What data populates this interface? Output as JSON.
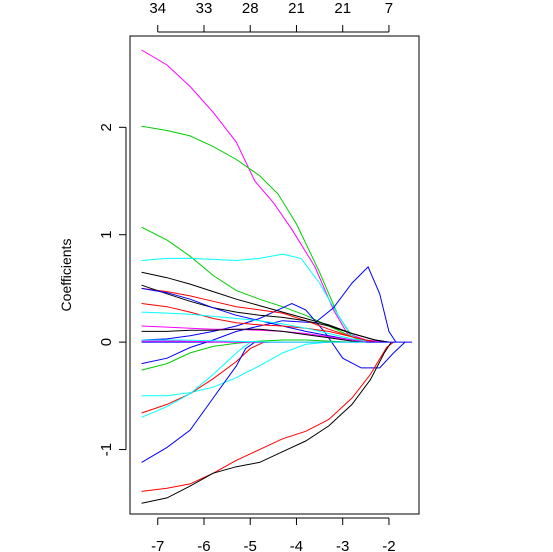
{
  "chart_data": {
    "type": "line",
    "title": "",
    "xlabel": "",
    "ylabel": "Coefficients",
    "xlim": [
      -7.6,
      -1.35
    ],
    "ylim": [
      -1.6,
      2.85
    ],
    "x_ticks": [
      -7,
      -6,
      -5,
      -4,
      -3,
      -2
    ],
    "x_tick_labels": [
      "-7",
      "-6",
      "-5",
      "-4",
      "-3",
      "-2"
    ],
    "y_ticks": [
      -1,
      0,
      1,
      2
    ],
    "y_tick_labels": [
      "-1",
      "0",
      "1",
      "2"
    ],
    "top_ticks": [
      -7,
      -6,
      -5,
      -4,
      -3,
      -2
    ],
    "top_tick_labels": [
      "34",
      "33",
      "28",
      "21",
      "21",
      "7"
    ],
    "grid": false,
    "legend": "none",
    "series": [
      {
        "color": "#FF00FF",
        "points": [
          [
            -7.35,
            2.72
          ],
          [
            -6.8,
            2.58
          ],
          [
            -6.3,
            2.38
          ],
          [
            -5.8,
            2.14
          ],
          [
            -5.3,
            1.86
          ],
          [
            -4.9,
            1.5
          ],
          [
            -4.5,
            1.3
          ],
          [
            -4.1,
            1.05
          ],
          [
            -3.6,
            0.7
          ],
          [
            -3.2,
            0.3
          ],
          [
            -2.9,
            0.08
          ],
          [
            -2.5,
            0.02
          ],
          [
            -2.05,
            0
          ]
        ]
      },
      {
        "color": "#00CD00",
        "points": [
          [
            -7.35,
            2.01
          ],
          [
            -6.8,
            1.97
          ],
          [
            -6.3,
            1.92
          ],
          [
            -5.8,
            1.82
          ],
          [
            -5.3,
            1.7
          ],
          [
            -4.8,
            1.55
          ],
          [
            -4.4,
            1.38
          ],
          [
            -4.0,
            1.1
          ],
          [
            -3.5,
            0.65
          ],
          [
            -3.1,
            0.25
          ],
          [
            -2.8,
            0.05
          ],
          [
            -2.5,
            0
          ]
        ]
      },
      {
        "color": "#00CD00",
        "points": [
          [
            -7.35,
            1.07
          ],
          [
            -6.8,
            0.95
          ],
          [
            -6.3,
            0.8
          ],
          [
            -5.8,
            0.62
          ],
          [
            -5.3,
            0.48
          ],
          [
            -4.8,
            0.4
          ],
          [
            -4.3,
            0.33
          ],
          [
            -3.8,
            0.25
          ],
          [
            -3.3,
            0.15
          ],
          [
            -2.8,
            0.05
          ],
          [
            -2.4,
            0
          ]
        ]
      },
      {
        "color": "#00FFFF",
        "points": [
          [
            -7.35,
            0.76
          ],
          [
            -6.8,
            0.78
          ],
          [
            -6.3,
            0.78
          ],
          [
            -5.8,
            0.77
          ],
          [
            -5.3,
            0.76
          ],
          [
            -4.8,
            0.78
          ],
          [
            -4.3,
            0.82
          ],
          [
            -3.9,
            0.78
          ],
          [
            -3.5,
            0.55
          ],
          [
            -3.1,
            0.25
          ],
          [
            -2.8,
            0.06
          ],
          [
            -2.5,
            0
          ]
        ]
      },
      {
        "color": "#0000FF",
        "points": [
          [
            -7.35,
            -0.2
          ],
          [
            -6.8,
            -0.15
          ],
          [
            -6.3,
            -0.05
          ],
          [
            -5.8,
            0.02
          ],
          [
            -5.3,
            0.1
          ],
          [
            -4.8,
            0.15
          ],
          [
            -4.3,
            0.2
          ],
          [
            -3.6,
            0.18
          ],
          [
            -3.2,
            0.32
          ],
          [
            -2.8,
            0.55
          ],
          [
            -2.45,
            0.7
          ],
          [
            -2.2,
            0.45
          ],
          [
            -2.0,
            0.1
          ],
          [
            -1.85,
            0
          ]
        ]
      },
      {
        "color": "#0000FF",
        "points": [
          [
            -7.35,
            0.02
          ],
          [
            -6.8,
            0.03
          ],
          [
            -6.3,
            0.06
          ],
          [
            -5.8,
            0.1
          ],
          [
            -5.3,
            0.15
          ],
          [
            -4.8,
            0.22
          ],
          [
            -4.3,
            0.32
          ],
          [
            -4.1,
            0.36
          ],
          [
            -3.8,
            0.3
          ],
          [
            -3.4,
            0.1
          ],
          [
            -3.0,
            -0.15
          ],
          [
            -2.6,
            -0.24
          ],
          [
            -2.2,
            -0.24
          ],
          [
            -1.9,
            -0.1
          ],
          [
            -1.65,
            0
          ]
        ]
      },
      {
        "color": "#000000",
        "points": [
          [
            -7.35,
            0.65
          ],
          [
            -6.8,
            0.6
          ],
          [
            -6.3,
            0.54
          ],
          [
            -5.8,
            0.47
          ],
          [
            -5.3,
            0.4
          ],
          [
            -4.8,
            0.34
          ],
          [
            -4.3,
            0.28
          ],
          [
            -3.8,
            0.22
          ],
          [
            -3.3,
            0.16
          ],
          [
            -2.8,
            0.08
          ],
          [
            -2.3,
            0.02
          ],
          [
            -2.0,
            0
          ]
        ]
      },
      {
        "color": "#FF0000",
        "points": [
          [
            -7.35,
            0.5
          ],
          [
            -6.8,
            0.47
          ],
          [
            -6.3,
            0.43
          ],
          [
            -5.8,
            0.38
          ],
          [
            -5.3,
            0.33
          ],
          [
            -4.8,
            0.3
          ],
          [
            -4.3,
            0.27
          ],
          [
            -3.8,
            0.2
          ],
          [
            -3.3,
            0.12
          ],
          [
            -2.8,
            0.05
          ],
          [
            -2.3,
            0
          ]
        ]
      },
      {
        "color": "#000000",
        "points": [
          [
            -7.35,
            0.53
          ],
          [
            -6.8,
            0.45
          ],
          [
            -6.3,
            0.38
          ],
          [
            -5.8,
            0.32
          ],
          [
            -5.3,
            0.28
          ],
          [
            -4.8,
            0.25
          ],
          [
            -4.3,
            0.23
          ],
          [
            -3.8,
            0.2
          ],
          [
            -3.3,
            0.15
          ],
          [
            -2.8,
            0.08
          ],
          [
            -2.3,
            0.02
          ],
          [
            -2.0,
            0
          ]
        ]
      },
      {
        "color": "#0000FF",
        "points": [
          [
            -7.35,
            0.5
          ],
          [
            -6.8,
            0.46
          ],
          [
            -6.3,
            0.4
          ],
          [
            -5.8,
            0.32
          ],
          [
            -5.3,
            0.25
          ],
          [
            -4.8,
            0.2
          ],
          [
            -4.3,
            0.15
          ],
          [
            -3.8,
            0.1
          ],
          [
            -3.3,
            0.06
          ],
          [
            -2.8,
            0.02
          ],
          [
            -2.5,
            0
          ]
        ]
      },
      {
        "color": "#FF0000",
        "points": [
          [
            -7.35,
            0.36
          ],
          [
            -6.8,
            0.33
          ],
          [
            -6.3,
            0.28
          ],
          [
            -5.8,
            0.22
          ],
          [
            -5.3,
            0.18
          ],
          [
            -4.8,
            0.16
          ],
          [
            -4.3,
            0.15
          ],
          [
            -3.8,
            0.13
          ],
          [
            -3.3,
            0.1
          ],
          [
            -2.8,
            0.05
          ],
          [
            -2.3,
            0
          ]
        ]
      },
      {
        "color": "#00FFFF",
        "points": [
          [
            -7.35,
            0.28
          ],
          [
            -6.8,
            0.27
          ],
          [
            -6.3,
            0.26
          ],
          [
            -5.8,
            0.24
          ],
          [
            -5.3,
            0.22
          ],
          [
            -4.8,
            0.2
          ],
          [
            -4.3,
            0.17
          ],
          [
            -3.8,
            0.13
          ],
          [
            -3.3,
            0.08
          ],
          [
            -2.8,
            0.03
          ],
          [
            -2.4,
            0
          ]
        ]
      },
      {
        "color": "#FF00FF",
        "points": [
          [
            -7.35,
            0.15
          ],
          [
            -6.8,
            0.14
          ],
          [
            -6.3,
            0.13
          ],
          [
            -5.8,
            0.12
          ],
          [
            -5.3,
            0.12
          ],
          [
            -4.8,
            0.11
          ],
          [
            -4.3,
            0.1
          ],
          [
            -3.8,
            0.08
          ],
          [
            -3.3,
            0.05
          ],
          [
            -2.8,
            0.02
          ],
          [
            -2.4,
            0
          ]
        ]
      },
      {
        "color": "#000000",
        "points": [
          [
            -7.35,
            0.1
          ],
          [
            -6.8,
            0.1
          ],
          [
            -6.3,
            0.11
          ],
          [
            -5.8,
            0.11
          ],
          [
            -5.3,
            0.12
          ],
          [
            -4.8,
            0.12
          ],
          [
            -4.3,
            0.1
          ],
          [
            -3.8,
            0.07
          ],
          [
            -3.3,
            0.04
          ],
          [
            -2.8,
            0.01
          ],
          [
            -2.5,
            0
          ]
        ]
      },
      {
        "color": "#00CD00",
        "points": [
          [
            -7.35,
            -0.26
          ],
          [
            -6.8,
            -0.2
          ],
          [
            -6.3,
            -0.1
          ],
          [
            -5.8,
            -0.04
          ],
          [
            -5.3,
            -0.01
          ],
          [
            -4.8,
            0.01
          ],
          [
            -4.3,
            0.02
          ],
          [
            -3.8,
            0.02
          ],
          [
            -3.3,
            0.01
          ],
          [
            -2.8,
            0.0
          ]
        ]
      },
      {
        "color": "#00FFFF",
        "points": [
          [
            -7.35,
            -0.5
          ],
          [
            -6.8,
            -0.5
          ],
          [
            -6.3,
            -0.47
          ],
          [
            -5.8,
            -0.42
          ],
          [
            -5.3,
            -0.33
          ],
          [
            -4.8,
            -0.22
          ],
          [
            -4.3,
            -0.1
          ],
          [
            -3.8,
            -0.02
          ],
          [
            -3.3,
            0.0
          ]
        ]
      },
      {
        "color": "#FF0000",
        "points": [
          [
            -7.35,
            -0.66
          ],
          [
            -6.8,
            -0.58
          ],
          [
            -6.3,
            -0.48
          ],
          [
            -5.8,
            -0.34
          ],
          [
            -5.3,
            -0.18
          ],
          [
            -5.0,
            -0.06
          ],
          [
            -4.7,
            0.0
          ],
          [
            -4.3,
            0.0
          ]
        ]
      },
      {
        "color": "#00FFFF",
        "points": [
          [
            -7.35,
            -0.7
          ],
          [
            -6.8,
            -0.6
          ],
          [
            -6.3,
            -0.48
          ],
          [
            -5.8,
            -0.3
          ],
          [
            -5.3,
            -0.1
          ],
          [
            -5.0,
            0.0
          ],
          [
            -4.6,
            0.0
          ]
        ]
      },
      {
        "color": "#0000FF",
        "points": [
          [
            -7.35,
            -1.12
          ],
          [
            -6.8,
            -0.98
          ],
          [
            -6.3,
            -0.82
          ],
          [
            -5.8,
            -0.52
          ],
          [
            -5.3,
            -0.22
          ],
          [
            -5.1,
            -0.06
          ],
          [
            -4.9,
            0.0
          ],
          [
            -4.6,
            0.0
          ]
        ]
      },
      {
        "color": "#FF0000",
        "points": [
          [
            -7.35,
            -1.39
          ],
          [
            -6.8,
            -1.36
          ],
          [
            -6.3,
            -1.32
          ],
          [
            -5.8,
            -1.22
          ],
          [
            -5.3,
            -1.1
          ],
          [
            -4.8,
            -1.0
          ],
          [
            -4.3,
            -0.9
          ],
          [
            -3.8,
            -0.83
          ],
          [
            -3.3,
            -0.72
          ],
          [
            -2.8,
            -0.52
          ],
          [
            -2.4,
            -0.3
          ],
          [
            -2.05,
            -0.05
          ],
          [
            -1.9,
            0
          ]
        ]
      },
      {
        "color": "#000000",
        "points": [
          [
            -7.35,
            -1.5
          ],
          [
            -6.8,
            -1.45
          ],
          [
            -6.3,
            -1.34
          ],
          [
            -5.8,
            -1.22
          ],
          [
            -5.3,
            -1.16
          ],
          [
            -4.8,
            -1.12
          ],
          [
            -4.3,
            -1.02
          ],
          [
            -3.8,
            -0.92
          ],
          [
            -3.3,
            -0.78
          ],
          [
            -2.8,
            -0.58
          ],
          [
            -2.4,
            -0.35
          ],
          [
            -2.1,
            -0.1
          ],
          [
            -1.95,
            0
          ]
        ]
      },
      {
        "color": "#0000FF",
        "points": [
          [
            -7.35,
            0.0
          ],
          [
            -6.5,
            0.0
          ],
          [
            -5.5,
            0.0
          ],
          [
            -4.5,
            0.0
          ],
          [
            -3.5,
            0.0
          ],
          [
            -2.5,
            0.0
          ],
          [
            -1.5,
            0.0
          ]
        ]
      },
      {
        "color": "#FF00FF",
        "points": [
          [
            -7.35,
            0.01
          ],
          [
            -6.5,
            0.01
          ],
          [
            -5.5,
            0.0
          ],
          [
            -4.5,
            0.0
          ],
          [
            -3.5,
            0.0
          ],
          [
            -2.5,
            0.0
          ]
        ]
      },
      {
        "color": "#00FFFF",
        "points": [
          [
            -7.35,
            0.02
          ],
          [
            -6.5,
            0.02
          ],
          [
            -5.5,
            0.01
          ],
          [
            -4.5,
            0.0
          ],
          [
            -3.5,
            0.0
          ],
          [
            -2.5,
            0.0
          ]
        ]
      }
    ]
  }
}
